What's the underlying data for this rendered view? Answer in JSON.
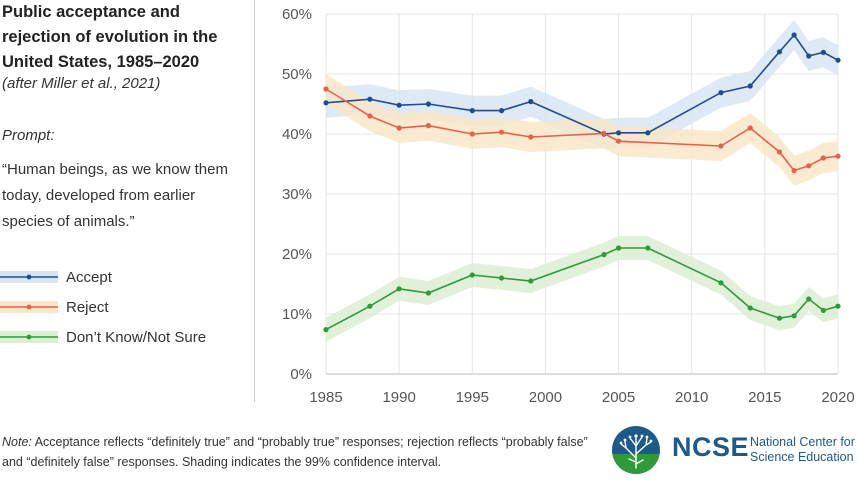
{
  "title": "Public acceptance and rejection of evolution in the United States, 1985–2020",
  "subtitle": "(after Miller et al., 2021)",
  "prompt_label": "Prompt:",
  "prompt_text": "“Human beings, as we know them today, developed from earlier species of animals.”",
  "note_prefix": "Note:",
  "note_text": "Acceptance reflects “definitely true” and “probably true” responses; rejection reflects “probably false” and “definitely false” responses. Shading indicates the 99% confidence interval.",
  "logo": {
    "word": "NCSE",
    "name_line1": "National Center for",
    "name_line2": "Science Education"
  },
  "colors": {
    "accept": "#1f4e8c",
    "accept_band": "#d7e5f2",
    "reject": "#e8604c",
    "reject_band": "#f8e6c8",
    "dontknow": "#2e9a3c",
    "dontknow_band": "#dcefd2",
    "grid": "#e4e4e4",
    "axis_text": "#555555",
    "brand": "#1c5a8c"
  },
  "chart_data": {
    "type": "line",
    "title": "Public acceptance and rejection of evolution in the United States, 1985–2020",
    "xlim": [
      1985,
      2020
    ],
    "ylim": [
      0,
      60
    ],
    "x_ticks": [
      1985,
      1990,
      1995,
      2000,
      2005,
      2010,
      2015,
      2020
    ],
    "y_ticks": [
      0,
      10,
      20,
      30,
      40,
      50,
      60
    ],
    "y_tick_labels": [
      "0%",
      "10%",
      "20%",
      "30%",
      "40%",
      "50%",
      "60%"
    ],
    "grid": "horizontal",
    "legend_position": "left",
    "series": [
      {
        "name": "Accept",
        "color": "#1f4e8c",
        "band_color": "#d7e5f2",
        "x": [
          1985,
          1988,
          1990,
          1992,
          1995,
          1997,
          1999,
          2004,
          2005,
          2007,
          2012,
          2014,
          2016,
          2017,
          2018,
          2019,
          2020
        ],
        "y": [
          45.2,
          45.8,
          44.8,
          45.0,
          43.9,
          43.9,
          45.4,
          40.0,
          40.2,
          40.2,
          46.9,
          48.0,
          53.7,
          56.5,
          53.0,
          53.6,
          52.3
        ],
        "ci_half_width": 2.5
      },
      {
        "name": "Reject",
        "color": "#e8604c",
        "band_color": "#f8e6c8",
        "x": [
          1985,
          1988,
          1990,
          1992,
          1995,
          1997,
          1999,
          2004,
          2005,
          2012,
          2014,
          2016,
          2017,
          2018,
          2019,
          2020
        ],
        "y": [
          47.5,
          43.0,
          41.0,
          41.4,
          40.0,
          40.3,
          39.5,
          40.1,
          38.8,
          38.0,
          41.0,
          37.0,
          33.9,
          34.7,
          36.0,
          36.3
        ],
        "ci_half_width": 2.5
      },
      {
        "name": "Don’t Know/Not Sure",
        "color": "#2e9a3c",
        "band_color": "#dcefd2",
        "x": [
          1985,
          1988,
          1990,
          1992,
          1995,
          1997,
          1999,
          2004,
          2005,
          2007,
          2012,
          2014,
          2016,
          2017,
          2018,
          2019,
          2020
        ],
        "y": [
          7.4,
          11.3,
          14.2,
          13.5,
          16.5,
          16.0,
          15.5,
          19.9,
          21.0,
          21.0,
          15.2,
          11.0,
          9.3,
          9.7,
          12.5,
          10.6,
          11.3
        ],
        "ci_half_width": 2.0
      }
    ]
  }
}
